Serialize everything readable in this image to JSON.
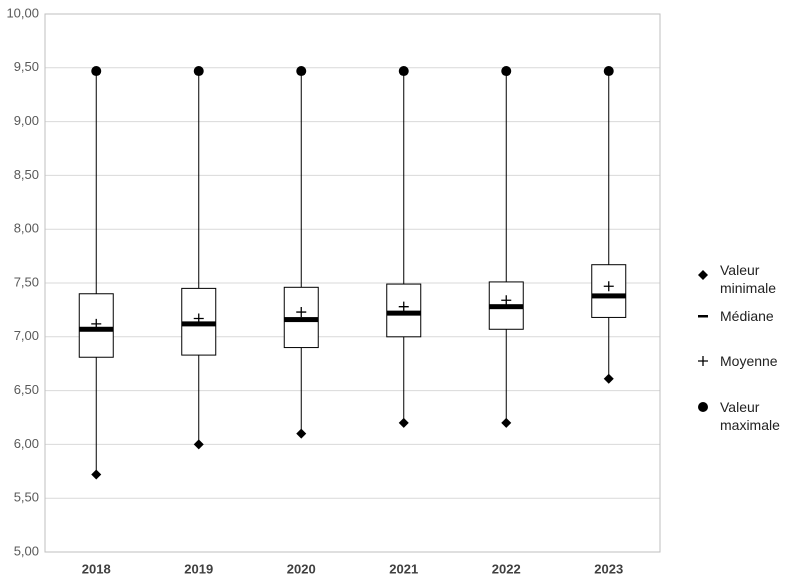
{
  "chart_data": {
    "type": "box",
    "categories": [
      "2018",
      "2019",
      "2020",
      "2021",
      "2022",
      "2023"
    ],
    "min": [
      5.72,
      6.0,
      6.1,
      6.2,
      6.2,
      6.61
    ],
    "q1": [
      6.81,
      6.83,
      6.9,
      7.0,
      7.07,
      7.18
    ],
    "median": [
      7.07,
      7.12,
      7.16,
      7.22,
      7.28,
      7.38
    ],
    "mean": [
      7.12,
      7.17,
      7.23,
      7.28,
      7.34,
      7.47
    ],
    "q3": [
      7.4,
      7.45,
      7.46,
      7.49,
      7.51,
      7.67
    ],
    "max": [
      9.47,
      9.47,
      9.47,
      9.47,
      9.47,
      9.47
    ],
    "legend": [
      "Valeur minimale",
      "Médiane",
      "Moyenne",
      "Valeur maximale"
    ],
    "ylim": [
      5,
      10
    ],
    "yticks": [
      {
        "value": 5,
        "label": "5,00"
      },
      {
        "value": 5.5,
        "label": "5,50"
      },
      {
        "value": 6,
        "label": "6,00"
      },
      {
        "value": 6.5,
        "label": "6,50"
      },
      {
        "value": 7,
        "label": "7,00"
      },
      {
        "value": 7.5,
        "label": "7,50"
      },
      {
        "value": 8,
        "label": "8,00"
      },
      {
        "value": 8.5,
        "label": "8,50"
      },
      {
        "value": 9,
        "label": "9,00"
      },
      {
        "value": 9.5,
        "label": "9,50"
      },
      {
        "value": 10,
        "label": "10,00"
      }
    ],
    "grid": true,
    "color": "#000000"
  }
}
